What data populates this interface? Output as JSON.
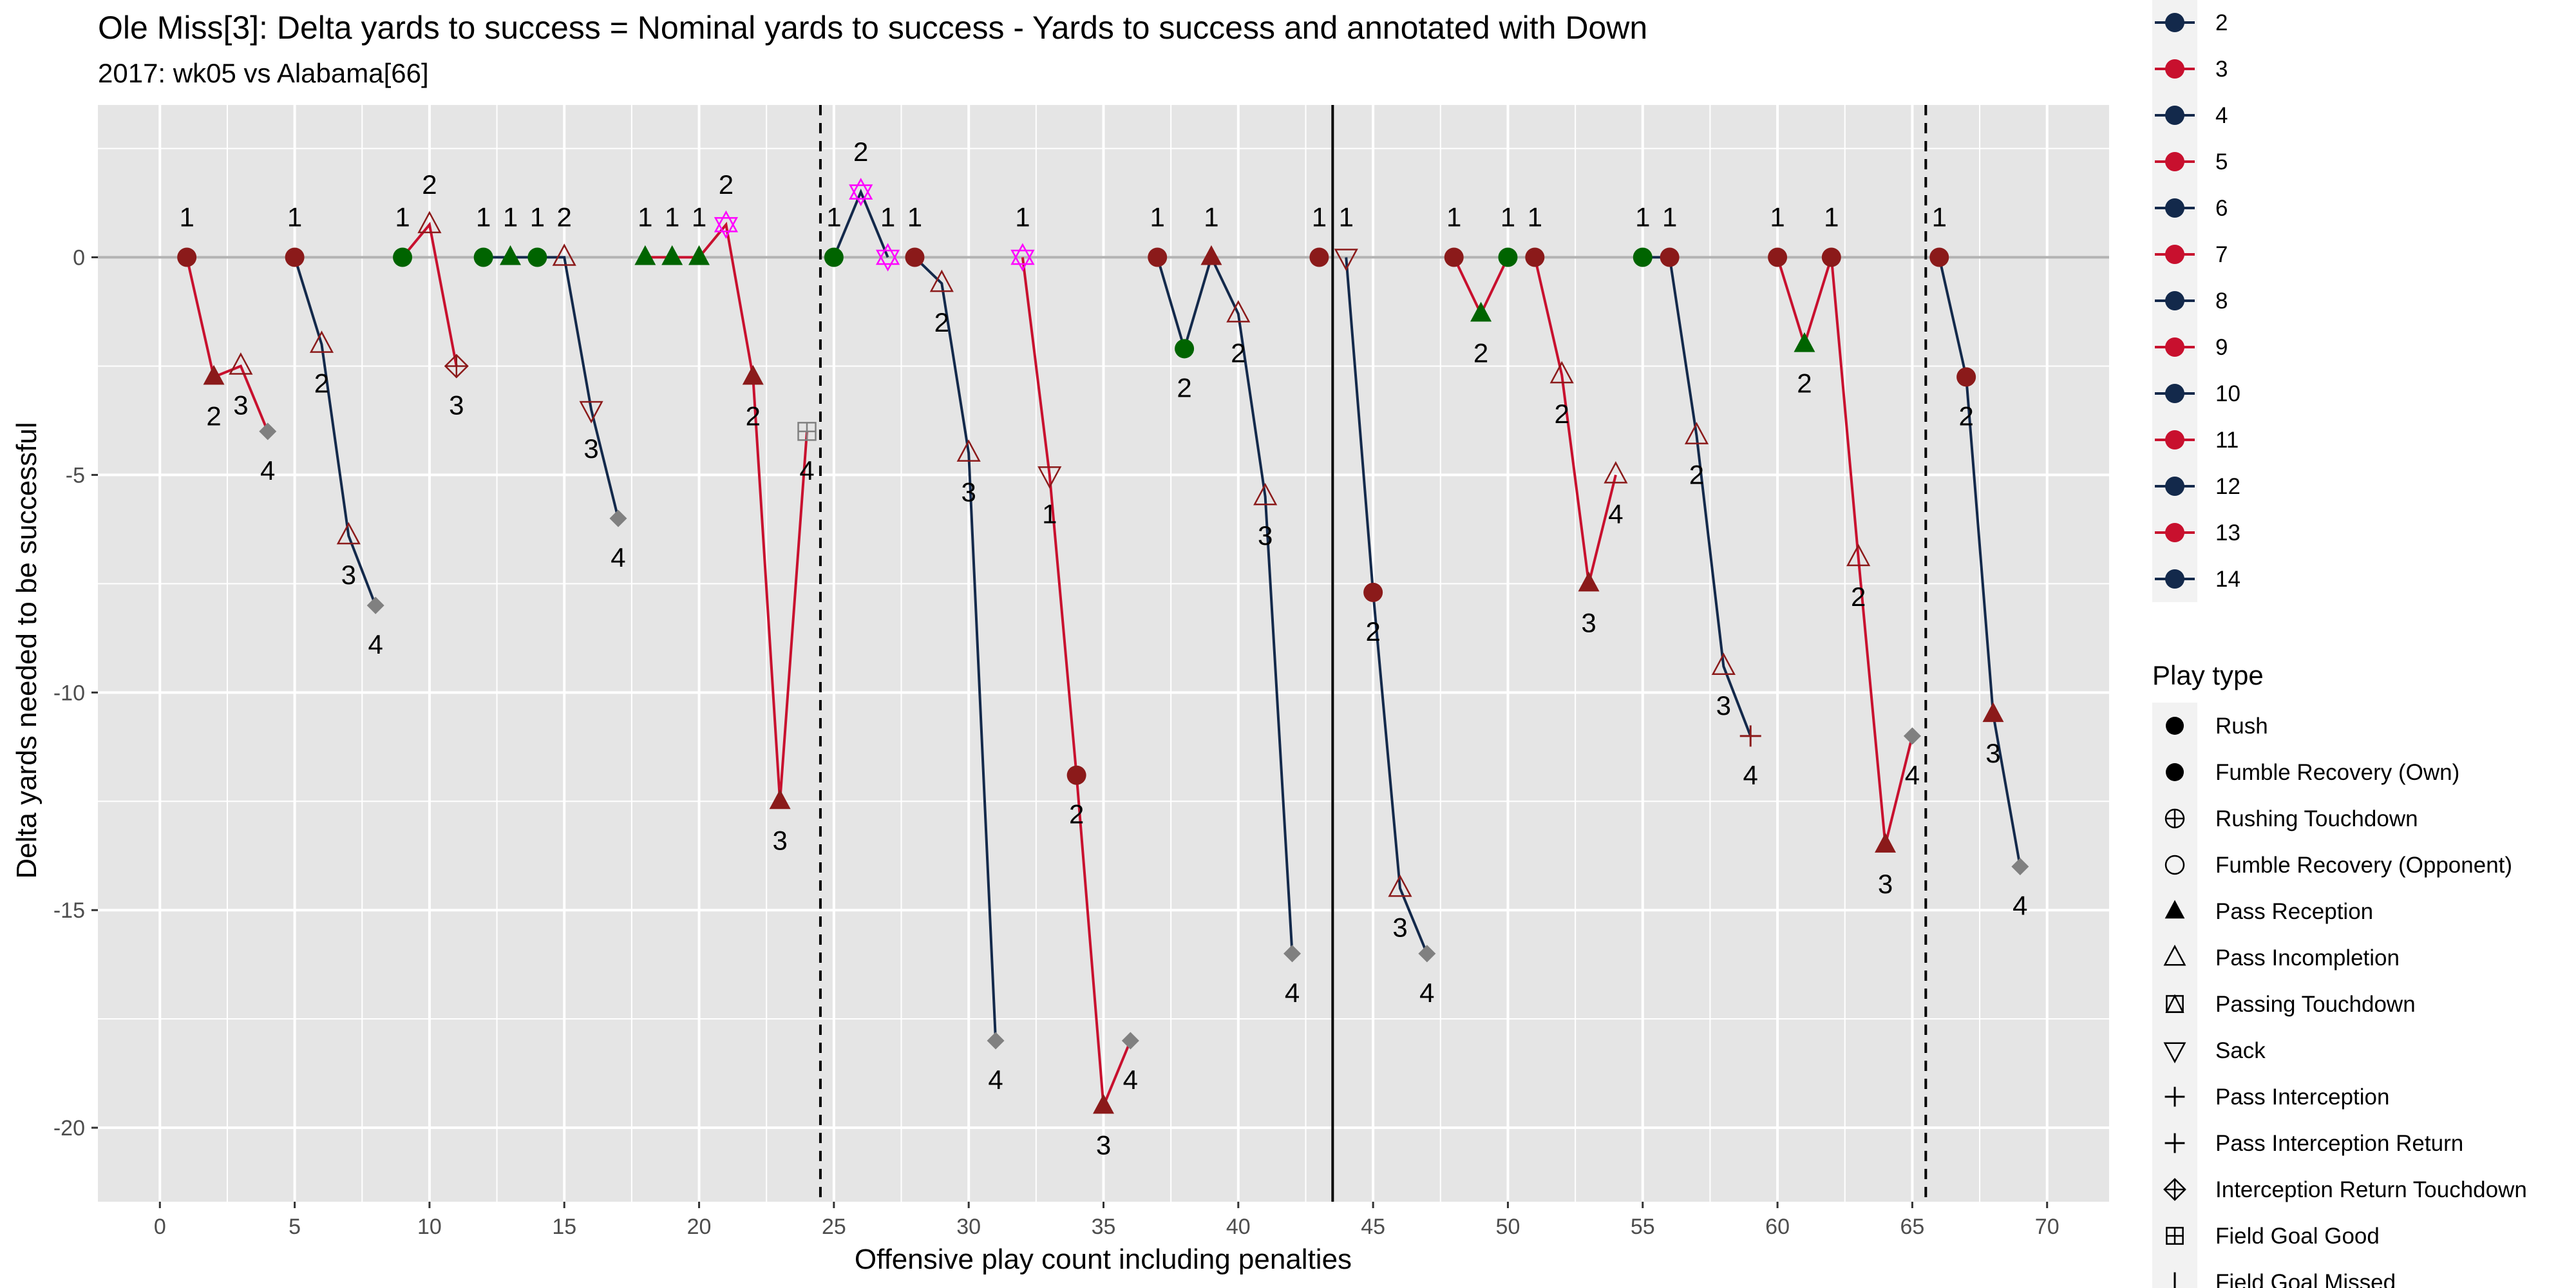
{
  "chart_data": {
    "type": "line",
    "title": "Ole Miss[3]: Delta yards to success = Nominal yards to success - Yards to success and annotated with Down",
    "subtitle": "2017: wk05 vs Alabama[66]",
    "xlabel": "Offensive play count including penalties",
    "ylabel": "Delta yards needed to be successful",
    "xlim": [
      -2.3,
      72.3
    ],
    "ylim": [
      -21.7,
      3.5
    ],
    "x_ticks": [
      0,
      5,
      10,
      15,
      20,
      25,
      30,
      35,
      40,
      45,
      50,
      55,
      60,
      65,
      70
    ],
    "y_ticks": [
      -20,
      -15,
      -10,
      -5,
      0
    ],
    "y_tick_labels": [
      "-20",
      "-15",
      "-10",
      "-5",
      "0"
    ],
    "grid": true,
    "hline": 0,
    "vlines": [
      {
        "x": 24.5,
        "style": "dashed"
      },
      {
        "x": 43.5,
        "style": "solid"
      },
      {
        "x": 65.5,
        "style": "dashed"
      }
    ],
    "colors": {
      "panel": "#e5e5e5",
      "grid": "#ffffff",
      "zero_line": "#b3b3b3",
      "drive_red": "#c8102e",
      "drive_navy": "#13294b",
      "rush_red": "#8b1a1a",
      "success_green": "#006400",
      "penalty_magenta": "#ff00ff",
      "special_gray": "#808080"
    },
    "drives": [
      {
        "color": "red",
        "points": [
          {
            "x": 1,
            "y": 0,
            "down": "1",
            "marker": "circle",
            "mc": "rush_red"
          },
          {
            "x": 2,
            "y": -2.75,
            "down": "2",
            "marker": "tri-up-filled",
            "mc": "rush_red"
          },
          {
            "x": 3,
            "y": -2.5,
            "down": "3",
            "marker": "tri-up-open",
            "mc": "rush_red"
          },
          {
            "x": 4,
            "y": -4,
            "down": "4",
            "marker": "diamond",
            "mc": "special_gray"
          }
        ]
      },
      {
        "color": "navy",
        "points": [
          {
            "x": 5,
            "y": 0,
            "down": "1",
            "marker": "circle",
            "mc": "rush_red"
          },
          {
            "x": 6,
            "y": -2,
            "down": "2",
            "marker": "tri-up-open",
            "mc": "rush_red"
          },
          {
            "x": 7,
            "y": -6.4,
            "down": "3",
            "marker": "tri-up-open",
            "mc": "rush_red"
          },
          {
            "x": 8,
            "y": -8,
            "down": "4",
            "marker": "diamond",
            "mc": "special_gray"
          }
        ]
      },
      {
        "color": "red",
        "points": [
          {
            "x": 9,
            "y": 0,
            "down": "1",
            "marker": "circle",
            "mc": "success_green"
          },
          {
            "x": 10,
            "y": 0.75,
            "down": "2",
            "marker": "tri-up-open",
            "mc": "rush_red"
          },
          {
            "x": 11,
            "y": -2.5,
            "down": "3",
            "marker": "diamond-plus",
            "mc": "rush_red"
          }
        ]
      },
      {
        "color": "navy",
        "points": [
          {
            "x": 12,
            "y": 0,
            "down": "1",
            "marker": "circle",
            "mc": "success_green"
          },
          {
            "x": 13,
            "y": 0,
            "down": "1",
            "marker": "tri-up-filled",
            "mc": "success_green"
          },
          {
            "x": 14,
            "y": 0,
            "down": "1",
            "marker": "circle",
            "mc": "success_green"
          },
          {
            "x": 15,
            "y": 0,
            "down": "2",
            "marker": "tri-up-open",
            "mc": "rush_red"
          },
          {
            "x": 16,
            "y": -3.5,
            "down": "3",
            "marker": "tri-down-open",
            "mc": "rush_red"
          },
          {
            "x": 17,
            "y": -6,
            "down": "4",
            "marker": "diamond",
            "mc": "special_gray"
          }
        ]
      },
      {
        "color": "red",
        "points": [
          {
            "x": 18,
            "y": 0,
            "down": "1",
            "marker": "tri-up-filled",
            "mc": "success_green"
          },
          {
            "x": 19,
            "y": 0,
            "down": "1",
            "marker": "tri-up-filled",
            "mc": "success_green"
          },
          {
            "x": 20,
            "y": 0,
            "down": "1",
            "marker": "tri-up-filled",
            "mc": "success_green"
          },
          {
            "x": 21,
            "y": 0.75,
            "down": "2",
            "marker": "star",
            "mc": "penalty_magenta"
          },
          {
            "x": 22,
            "y": -2.75,
            "down": "2",
            "marker": "tri-up-filled",
            "mc": "rush_red"
          },
          {
            "x": 23,
            "y": -12.5,
            "down": "3",
            "marker": "tri-up-filled",
            "mc": "rush_red"
          },
          {
            "x": 24,
            "y": -4,
            "down": "4",
            "marker": "square-plus",
            "mc": "special_gray"
          }
        ]
      },
      {
        "color": "navy",
        "points": [
          {
            "x": 25,
            "y": 0,
            "down": "1",
            "marker": "circle",
            "mc": "success_green"
          },
          {
            "x": 26,
            "y": 1.5,
            "down": "2",
            "marker": "star",
            "mc": "penalty_magenta"
          },
          {
            "x": 27,
            "y": 0,
            "down": "1",
            "marker": "star",
            "mc": "penalty_magenta"
          }
        ]
      },
      {
        "color": "navy",
        "points": [
          {
            "x": 28,
            "y": 0,
            "down": "1",
            "marker": "circle",
            "mc": "rush_red"
          },
          {
            "x": 29,
            "y": -0.6,
            "down": "2",
            "marker": "tri-up-open",
            "mc": "rush_red"
          },
          {
            "x": 30,
            "y": -4.5,
            "down": "3",
            "marker": "tri-up-open",
            "mc": "rush_red"
          },
          {
            "x": 31,
            "y": -18,
            "down": "4",
            "marker": "diamond",
            "mc": "special_gray"
          }
        ]
      },
      {
        "color": "red",
        "points": [
          {
            "x": 32,
            "y": 0,
            "down": "1",
            "marker": "star",
            "mc": "penalty_magenta"
          },
          {
            "x": 33,
            "y": -5,
            "down": "1",
            "marker": "tri-down-open",
            "mc": "rush_red"
          },
          {
            "x": 34,
            "y": -11.9,
            "down": "2",
            "marker": "circle",
            "mc": "rush_red"
          },
          {
            "x": 35,
            "y": -19.5,
            "down": "3",
            "marker": "tri-up-filled",
            "mc": "rush_red"
          },
          {
            "x": 36,
            "y": -18,
            "down": "4",
            "marker": "diamond",
            "mc": "special_gray"
          }
        ]
      },
      {
        "color": "navy",
        "points": [
          {
            "x": 37,
            "y": 0,
            "down": "1",
            "marker": "circle",
            "mc": "rush_red"
          },
          {
            "x": 38,
            "y": -2.1,
            "down": "2",
            "marker": "circle",
            "mc": "success_green"
          },
          {
            "x": 39,
            "y": 0,
            "down": "1",
            "marker": "tri-up-filled",
            "mc": "rush_red"
          },
          {
            "x": 40,
            "y": -1.3,
            "down": "2",
            "marker": "tri-up-open",
            "mc": "rush_red"
          },
          {
            "x": 41,
            "y": -5.5,
            "down": "3",
            "marker": "tri-up-open",
            "mc": "rush_red"
          },
          {
            "x": 42,
            "y": -16,
            "down": "4",
            "marker": "diamond",
            "mc": "special_gray"
          }
        ]
      },
      {
        "color": "red",
        "points": [
          {
            "x": 43,
            "y": 0,
            "down": "1",
            "marker": "circle",
            "mc": "rush_red"
          }
        ]
      },
      {
        "color": "navy",
        "points": [
          {
            "x": 44,
            "y": 0,
            "down": "1",
            "marker": "tri-down-open",
            "mc": "rush_red"
          },
          {
            "x": 45,
            "y": -7.7,
            "down": "2",
            "marker": "circle",
            "mc": "rush_red"
          },
          {
            "x": 46,
            "y": -14.5,
            "down": "3",
            "marker": "tri-up-open",
            "mc": "rush_red"
          },
          {
            "x": 47,
            "y": -16,
            "down": "4",
            "marker": "diamond",
            "mc": "special_gray"
          }
        ]
      },
      {
        "color": "red",
        "points": [
          {
            "x": 48,
            "y": 0,
            "down": "1",
            "marker": "circle",
            "mc": "rush_red"
          },
          {
            "x": 49,
            "y": -1.3,
            "down": "2",
            "marker": "tri-up-filled",
            "mc": "success_green"
          },
          {
            "x": 50,
            "y": 0,
            "down": "1",
            "marker": "circle",
            "mc": "success_green"
          }
        ]
      },
      {
        "color": "red",
        "points": [
          {
            "x": 51,
            "y": 0,
            "down": "1",
            "marker": "circle",
            "mc": "rush_red"
          },
          {
            "x": 52,
            "y": -2.7,
            "down": "2",
            "marker": "tri-up-open",
            "mc": "rush_red"
          },
          {
            "x": 53,
            "y": -7.5,
            "down": "3",
            "marker": "tri-up-filled",
            "mc": "rush_red"
          },
          {
            "x": 54,
            "y": -5,
            "down": "4",
            "marker": "tri-up-open",
            "mc": "rush_red"
          }
        ]
      },
      {
        "color": "navy",
        "points": [
          {
            "x": 55,
            "y": 0,
            "down": "1",
            "marker": "circle",
            "mc": "success_green"
          },
          {
            "x": 56,
            "y": 0,
            "down": "1",
            "marker": "circle",
            "mc": "rush_red"
          },
          {
            "x": 57,
            "y": -4.1,
            "down": "2",
            "marker": "tri-up-open",
            "mc": "rush_red"
          },
          {
            "x": 58,
            "y": -9.4,
            "down": "3",
            "marker": "tri-up-open",
            "mc": "rush_red"
          },
          {
            "x": 59,
            "y": -11,
            "down": "4",
            "marker": "plus",
            "mc": "rush_red"
          }
        ]
      },
      {
        "color": "red",
        "points": [
          {
            "x": 60,
            "y": 0,
            "down": "1",
            "marker": "circle",
            "mc": "rush_red"
          },
          {
            "x": 61,
            "y": -2,
            "down": "2",
            "marker": "tri-up-filled",
            "mc": "success_green"
          },
          {
            "x": 62,
            "y": 0,
            "down": "1",
            "marker": "circle",
            "mc": "rush_red"
          },
          {
            "x": 63,
            "y": -6.9,
            "down": "2",
            "marker": "tri-up-open",
            "mc": "rush_red"
          },
          {
            "x": 64,
            "y": -13.5,
            "down": "3",
            "marker": "tri-up-filled",
            "mc": "rush_red"
          },
          {
            "x": 65,
            "y": -11,
            "down": "4",
            "marker": "diamond",
            "mc": "special_gray"
          }
        ]
      },
      {
        "color": "navy",
        "points": [
          {
            "x": 66,
            "y": 0,
            "down": "1",
            "marker": "circle",
            "mc": "rush_red"
          },
          {
            "x": 67,
            "y": -2.75,
            "down": "2",
            "marker": "circle",
            "mc": "rush_red"
          },
          {
            "x": 68,
            "y": -10.5,
            "down": "3",
            "marker": "tri-up-filled",
            "mc": "rush_red"
          },
          {
            "x": 69,
            "y": -14,
            "down": "4",
            "marker": "diamond",
            "mc": "special_gray"
          }
        ]
      }
    ],
    "legend_drive": {
      "items": [
        {
          "label": "2",
          "color": "navy"
        },
        {
          "label": "3",
          "color": "red"
        },
        {
          "label": "4",
          "color": "navy"
        },
        {
          "label": "5",
          "color": "red"
        },
        {
          "label": "6",
          "color": "navy"
        },
        {
          "label": "7",
          "color": "red"
        },
        {
          "label": "8",
          "color": "navy"
        },
        {
          "label": "9",
          "color": "red"
        },
        {
          "label": "10",
          "color": "navy"
        },
        {
          "label": "11",
          "color": "red"
        },
        {
          "label": "12",
          "color": "navy"
        },
        {
          "label": "13",
          "color": "red"
        },
        {
          "label": "14",
          "color": "navy"
        }
      ]
    },
    "legend_playtype": {
      "title": "Play type",
      "items": [
        {
          "label": "Rush",
          "marker": "circle"
        },
        {
          "label": "Fumble Recovery (Own)",
          "marker": "circle"
        },
        {
          "label": "Rushing Touchdown",
          "marker": "circle-plus"
        },
        {
          "label": "Fumble Recovery (Opponent)",
          "marker": "circle-open"
        },
        {
          "label": "Pass Reception",
          "marker": "tri-up-filled"
        },
        {
          "label": "Pass Incompletion",
          "marker": "tri-up-open"
        },
        {
          "label": "Passing Touchdown",
          "marker": "square-tri"
        },
        {
          "label": "Sack",
          "marker": "tri-down-open"
        },
        {
          "label": "Pass Interception",
          "marker": "plus"
        },
        {
          "label": "Pass Interception Return",
          "marker": "plus"
        },
        {
          "label": "Interception Return Touchdown",
          "marker": "diamond-plus"
        },
        {
          "label": "Field Goal Good",
          "marker": "square-plus"
        },
        {
          "label": "Field Goal Missed",
          "marker": "bar"
        }
      ]
    }
  }
}
